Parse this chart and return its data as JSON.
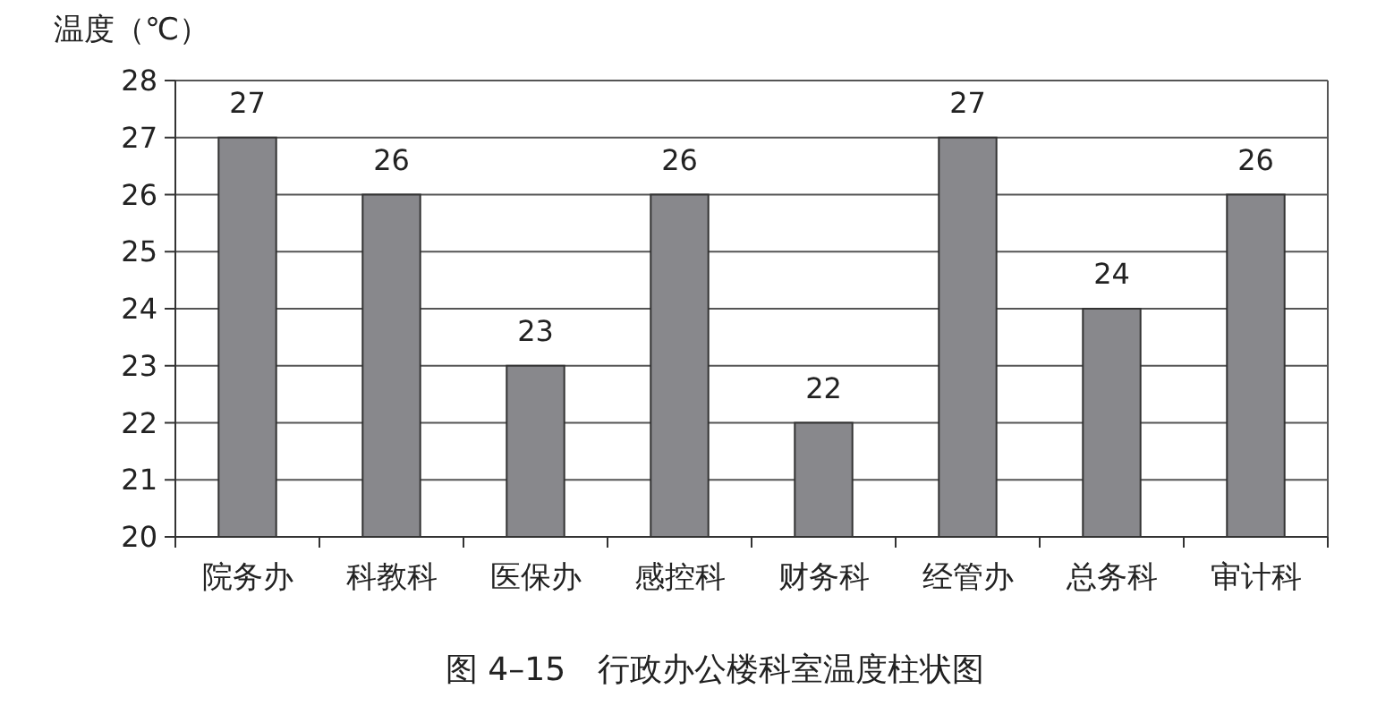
{
  "chart_data": {
    "type": "bar",
    "title": "图 4–15　行政办公楼科室温度柱状图",
    "ylabel": "温度（℃）",
    "categories": [
      "院务办",
      "科教科",
      "医保办",
      "感控科",
      "财务科",
      "经管办",
      "总务科",
      "审计科"
    ],
    "values": [
      27,
      26,
      23,
      26,
      22,
      27,
      24,
      26
    ],
    "color": "#88888c",
    "ylim": [
      20,
      28
    ],
    "yticks": [
      20,
      21,
      22,
      23,
      24,
      25,
      26,
      27,
      28
    ],
    "grid": "y",
    "data_labels": true
  }
}
